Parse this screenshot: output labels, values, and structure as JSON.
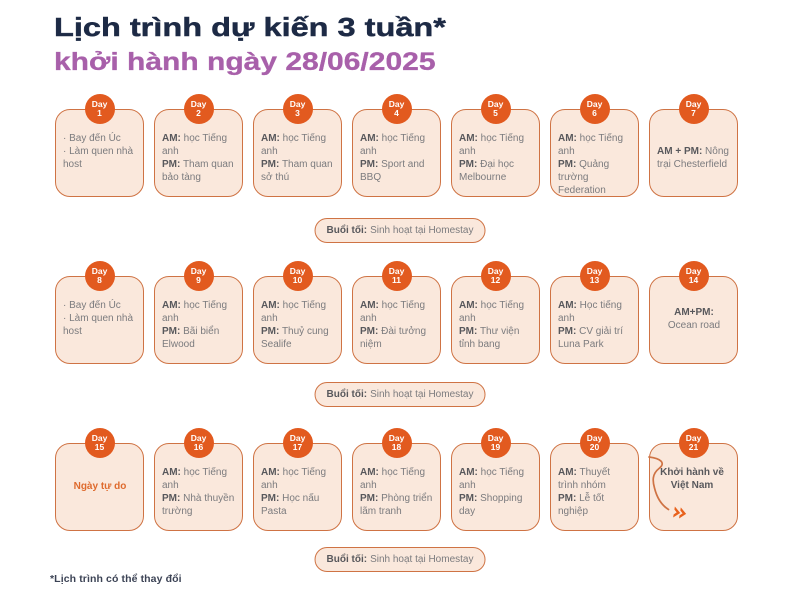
{
  "header": {
    "title": "Lịch trình dự kiến 3 tuần*",
    "subtitle": "khởi hành ngày 28/06/2025"
  },
  "footnote": "*Lịch trình có thể thay đổi",
  "badge_word": "Day",
  "bullet_char": "·",
  "evening_pill": {
    "label": "Buổi tối:",
    "text": "Sinh hoạt tại Homestay"
  },
  "colors": {
    "background": "#ffffff",
    "title_navy": "#1d2a45",
    "subtitle_purple": "#a860aa",
    "badge_orange": "#e25a1f",
    "card_border_orange": "#cf7344",
    "card_fill_peach": "#fae8dc",
    "body_grey": "#7b7b7e",
    "bold_grey": "#58585c",
    "highlight_orange": "#de6a2d",
    "footnote_slate": "#3c4355",
    "arrowhead_orange": "#e8611c"
  },
  "weeks": [
    {
      "days": [
        {
          "number": "1",
          "type": "bullets",
          "items": [
            "Bay đến Úc",
            "Làm quen nhà host"
          ]
        },
        {
          "number": "2",
          "type": "schedule",
          "slots": [
            {
              "label": "AM:",
              "text": "học Tiếng anh"
            },
            {
              "label": "PM:",
              "text": "Tham quan bảo tàng"
            }
          ]
        },
        {
          "number": "3",
          "type": "schedule",
          "slots": [
            {
              "label": "AM:",
              "text": "học Tiếng anh"
            },
            {
              "label": "PM:",
              "text": "Tham quan sở thú"
            }
          ]
        },
        {
          "number": "4",
          "type": "schedule",
          "slots": [
            {
              "label": "AM:",
              "text": "học Tiếng anh"
            },
            {
              "label": "PM:",
              "text": "Sport and BBQ"
            }
          ]
        },
        {
          "number": "5",
          "type": "schedule",
          "slots": [
            {
              "label": "AM:",
              "text": "học Tiếng anh"
            },
            {
              "label": "PM:",
              "text": "Đại học Melbourne"
            }
          ]
        },
        {
          "number": "6",
          "type": "schedule",
          "slots": [
            {
              "label": "AM:",
              "text": "học Tiếng anh"
            },
            {
              "label": "PM:",
              "text": "Quảng trường Federation"
            }
          ]
        },
        {
          "number": "7",
          "type": "note",
          "label": "AM + PM:",
          "text": "Nông trại Chesterfield"
        }
      ]
    },
    {
      "days": [
        {
          "number": "8",
          "type": "bullets",
          "items": [
            "Bay đến Úc",
            "Làm quen nhà host"
          ]
        },
        {
          "number": "9",
          "type": "schedule",
          "slots": [
            {
              "label": "AM:",
              "text": "học Tiếng anh"
            },
            {
              "label": "PM:",
              "text": "Bãi biển Elwood"
            }
          ]
        },
        {
          "number": "10",
          "type": "schedule",
          "slots": [
            {
              "label": "AM:",
              "text": "học Tiếng anh"
            },
            {
              "label": "PM:",
              "text": "Thuỷ cung Sealife"
            }
          ]
        },
        {
          "number": "11",
          "type": "schedule",
          "slots": [
            {
              "label": "AM:",
              "text": "học Tiếng anh"
            },
            {
              "label": "PM:",
              "text": "Đài tưởng niệm"
            }
          ]
        },
        {
          "number": "12",
          "type": "schedule",
          "slots": [
            {
              "label": "AM:",
              "text": "học Tiếng anh"
            },
            {
              "label": "PM:",
              "text": "Thư viện tỉnh bang"
            }
          ]
        },
        {
          "number": "13",
          "type": "schedule",
          "slots": [
            {
              "label": "AM:",
              "text": "Học tiếng anh"
            },
            {
              "label": "PM:",
              "text": "CV giải trí Luna Park"
            }
          ]
        },
        {
          "number": "14",
          "type": "note-centered",
          "label": "AM+PM:",
          "text": "Ocean road"
        }
      ]
    },
    {
      "days": [
        {
          "number": "15",
          "type": "highlight",
          "text": "Ngày tự do"
        },
        {
          "number": "16",
          "type": "schedule",
          "slots": [
            {
              "label": "AM:",
              "text": "học Tiếng anh"
            },
            {
              "label": "PM:",
              "text": "Nhà thuyền trường"
            }
          ]
        },
        {
          "number": "17",
          "type": "schedule",
          "slots": [
            {
              "label": "AM:",
              "text": "học Tiếng anh"
            },
            {
              "label": "PM:",
              "text": "Học nấu Pasta"
            }
          ]
        },
        {
          "number": "18",
          "type": "schedule",
          "slots": [
            {
              "label": "AM:",
              "text": "học Tiếng anh"
            },
            {
              "label": "PM:",
              "text": "Phòng triển lãm tranh"
            }
          ]
        },
        {
          "number": "19",
          "type": "schedule",
          "slots": [
            {
              "label": "AM:",
              "text": "học Tiếng anh"
            },
            {
              "label": "PM:",
              "text": "Shopping day"
            }
          ]
        },
        {
          "number": "20",
          "type": "schedule",
          "slots": [
            {
              "label": "AM:",
              "text": "Thuyết trình nhóm"
            },
            {
              "label": "PM:",
              "text": "Lễ tốt nghiệp"
            }
          ]
        },
        {
          "number": "21",
          "type": "departure",
          "text": "Khởi hành về Việt Nam",
          "decoration": "squiggle-arrow"
        }
      ]
    }
  ],
  "layout": {
    "week_tops": [
      94,
      261,
      428
    ],
    "pill_tops": [
      218,
      382,
      547
    ]
  }
}
